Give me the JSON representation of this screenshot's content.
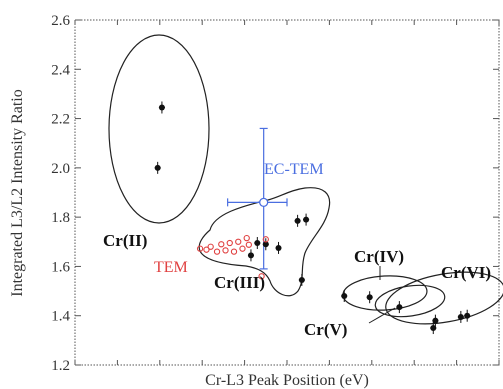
{
  "chart_data": {
    "type": "scatter",
    "xlabel": "Cr-L3 Peak Position (eV)",
    "ylabel": "Integrated L3/L2 Intensity Ratio",
    "ylim": [
      1.2,
      2.6
    ],
    "yticks": [
      "1.2",
      "1.4",
      "1.6",
      "1.8",
      "2.0",
      "2.2",
      "2.4",
      "2.6"
    ],
    "x_tick_labels_visible": false,
    "x_unit": "relative",
    "xlim": [
      0,
      100
    ],
    "colors": {
      "black": "#111111",
      "tem": "#e04040",
      "ec_tem": "#4a6ee0",
      "axis": "#333333"
    },
    "groups": [
      {
        "label": "Cr(II)",
        "points": [
          {
            "x": 19.5,
            "y": 2.0
          },
          {
            "x": 20.5,
            "y": 2.245
          }
        ]
      },
      {
        "label": "Cr(III)",
        "points": [
          {
            "x": 41.5,
            "y": 1.645
          },
          {
            "x": 43.0,
            "y": 1.695
          },
          {
            "x": 45.0,
            "y": 1.69
          },
          {
            "x": 48.0,
            "y": 1.675
          },
          {
            "x": 52.5,
            "y": 1.785
          },
          {
            "x": 54.5,
            "y": 1.79
          },
          {
            "x": 53.5,
            "y": 1.545
          }
        ]
      },
      {
        "label": "Cr(IV)",
        "points": [
          {
            "x": 63.5,
            "y": 1.48
          },
          {
            "x": 69.5,
            "y": 1.475
          }
        ]
      },
      {
        "label": "Cr(V)",
        "points": [
          {
            "x": 76.5,
            "y": 1.435
          }
        ]
      },
      {
        "label": "Cr(VI)",
        "points": [
          {
            "x": 85.0,
            "y": 1.38
          },
          {
            "x": 84.5,
            "y": 1.35
          },
          {
            "x": 91.0,
            "y": 1.395
          },
          {
            "x": 92.5,
            "y": 1.4
          }
        ]
      }
    ],
    "series": [
      {
        "name": "TEM",
        "marker": "open-circle",
        "color": "#e04040",
        "points": [
          {
            "x": 29.5,
            "y": 1.672
          },
          {
            "x": 31.0,
            "y": 1.668
          },
          {
            "x": 32.0,
            "y": 1.68
          },
          {
            "x": 33.5,
            "y": 1.66
          },
          {
            "x": 34.5,
            "y": 1.69
          },
          {
            "x": 35.5,
            "y": 1.665
          },
          {
            "x": 36.5,
            "y": 1.695
          },
          {
            "x": 37.5,
            "y": 1.66
          },
          {
            "x": 38.5,
            "y": 1.7
          },
          {
            "x": 39.5,
            "y": 1.672
          },
          {
            "x": 40.5,
            "y": 1.715
          },
          {
            "x": 41.0,
            "y": 1.688
          },
          {
            "x": 44.0,
            "y": 1.56
          },
          {
            "x": 45.0,
            "y": 1.71
          }
        ]
      },
      {
        "name": "EC-TEM",
        "marker": "open-circle-errorbar",
        "color": "#4a6ee0",
        "points": [
          {
            "x": 44.5,
            "y": 1.86,
            "x_err": [
              8.5,
              5.5
            ],
            "y_err": [
              0.27,
              0.3
            ]
          }
        ]
      }
    ]
  }
}
